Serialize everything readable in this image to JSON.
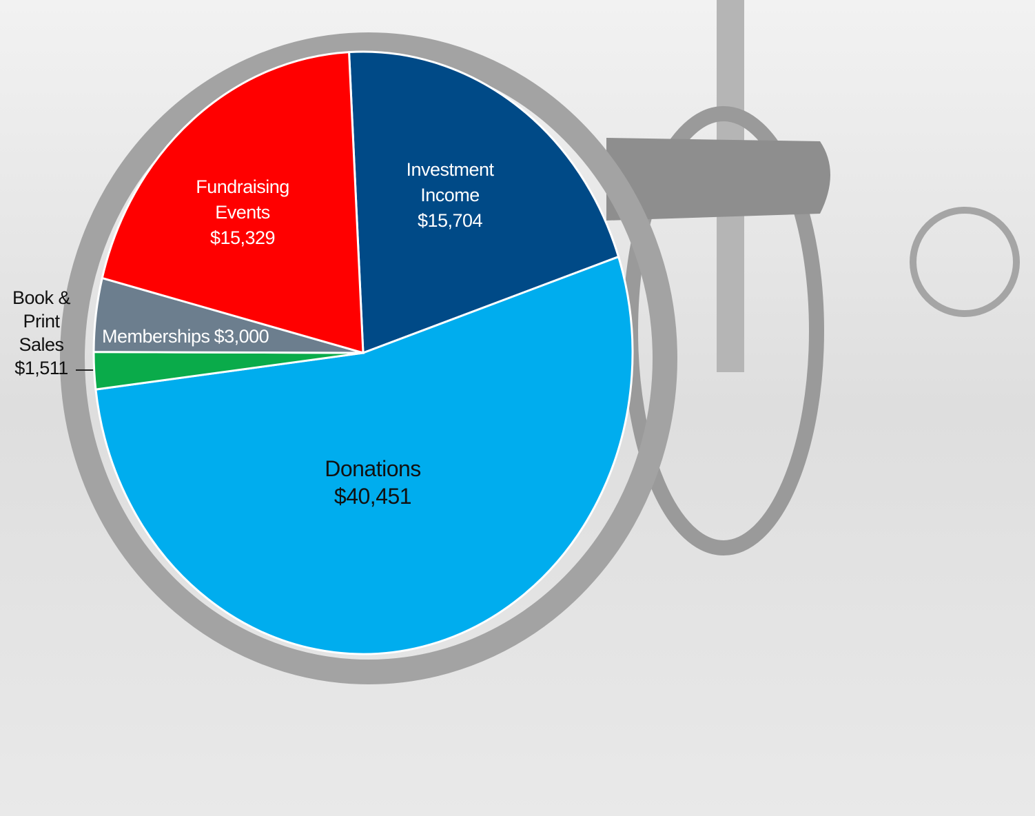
{
  "chart_data": {
    "type": "pie",
    "categories": [
      "Investment Income",
      "Donations",
      "Book & Print Sales",
      "Memberships",
      "Fundraising Events"
    ],
    "values": [
      15704,
      40451,
      1511,
      3000,
      15329
    ],
    "value_labels": [
      "$15,704",
      "$40,451",
      "$1,511",
      "$3,000",
      "$15,329"
    ],
    "colors": [
      "#004a87",
      "#00adee",
      "#0aab4a",
      "#6c7e8e",
      "#ff0000"
    ]
  }
}
